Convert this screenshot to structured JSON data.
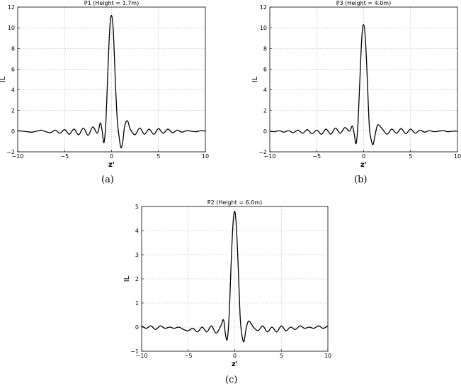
{
  "figure": {
    "captions": [
      "(a)",
      "(b)",
      "(c)"
    ]
  },
  "chart_data": [
    {
      "type": "line",
      "title": "P1 (Height = 1.7m)",
      "xlabel": "z'",
      "ylabel": "IL",
      "xlim": [
        -10,
        10
      ],
      "ylim": [
        -2,
        12
      ],
      "xticks": [
        -10,
        -5,
        0,
        5,
        10
      ],
      "yticks": [
        -2,
        0,
        2,
        4,
        6,
        8,
        10,
        12
      ],
      "grid": true,
      "series": [
        {
          "x": [
            -10,
            -9.5,
            -9,
            -8.5,
            -8,
            -7.5,
            -7,
            -6.5,
            -6,
            -5.5,
            -5,
            -4.5,
            -4,
            -3.5,
            -3,
            -2.5,
            -2,
            -1.5,
            -1.2,
            -1,
            -0.8,
            -0.6,
            -0.4,
            -0.2,
            0,
            0.2,
            0.4,
            0.6,
            0.8,
            1,
            1.2,
            1.4,
            1.7,
            2,
            2.5,
            3,
            3.5,
            4,
            4.5,
            5,
            5.5,
            6,
            6.5,
            7,
            7.5,
            8,
            8.5,
            9,
            9.5,
            10
          ],
          "y": [
            0.05,
            0.0,
            -0.05,
            -0.1,
            0.0,
            0.1,
            -0.05,
            -0.15,
            0.1,
            -0.2,
            0.15,
            -0.3,
            0.2,
            -0.35,
            0.3,
            -0.4,
            0.4,
            -0.2,
            0.8,
            0.0,
            -1.1,
            1.0,
            5.5,
            9.8,
            11.2,
            9.5,
            5.0,
            1.2,
            -0.5,
            -1.6,
            -1.0,
            0.5,
            1.0,
            0.2,
            -0.35,
            0.3,
            -0.3,
            0.2,
            -0.3,
            0.25,
            -0.2,
            0.2,
            -0.15,
            0.1,
            -0.1,
            0.05,
            0.0,
            -0.05,
            0.05,
            0.0
          ]
        }
      ]
    },
    {
      "type": "line",
      "title": "P3 (Height = 4.0m)",
      "xlabel": "z'",
      "ylabel": "IL",
      "xlim": [
        -10,
        10
      ],
      "ylim": [
        -2,
        12
      ],
      "xticks": [
        -10,
        -5,
        0,
        5,
        10
      ],
      "yticks": [
        -2,
        0,
        2,
        4,
        6,
        8,
        10,
        12
      ],
      "grid": true,
      "series": [
        {
          "x": [
            -10,
            -9.5,
            -9,
            -8.5,
            -8,
            -7.5,
            -7,
            -6.5,
            -6,
            -5.5,
            -5,
            -4.5,
            -4,
            -3.5,
            -3,
            -2.5,
            -2,
            -1.5,
            -1.2,
            -1,
            -0.8,
            -0.6,
            -0.4,
            -0.2,
            0,
            0.2,
            0.4,
            0.6,
            0.8,
            1,
            1.2,
            1.5,
            2,
            2.5,
            3,
            3.5,
            4,
            4.5,
            5,
            5.5,
            6,
            6.5,
            7,
            7.5,
            8,
            8.5,
            9,
            9.5,
            10
          ],
          "y": [
            0.0,
            -0.05,
            0.05,
            -0.1,
            0.05,
            -0.15,
            0.1,
            -0.2,
            0.15,
            -0.25,
            0.1,
            -0.3,
            0.2,
            -0.3,
            0.3,
            -0.2,
            0.35,
            0.0,
            0.5,
            -0.3,
            -1.2,
            0.8,
            5.0,
            9.0,
            10.3,
            8.8,
            4.8,
            0.5,
            -0.8,
            -1.3,
            -0.5,
            0.6,
            0.2,
            -0.3,
            0.2,
            -0.2,
            0.25,
            -0.25,
            0.2,
            -0.2,
            0.1,
            -0.1,
            0.05,
            -0.05,
            0.0,
            0.05,
            -0.05,
            0.0,
            0.0
          ]
        }
      ]
    },
    {
      "type": "line",
      "title": "P2 (Height = 6.0m)",
      "xlabel": "z'",
      "ylabel": "IL",
      "xlim": [
        -10,
        10
      ],
      "ylim": [
        -1,
        5
      ],
      "xticks": [
        -10,
        -5,
        0,
        5,
        10
      ],
      "yticks": [
        -1,
        0,
        1,
        2,
        3,
        4,
        5
      ],
      "grid": true,
      "series": [
        {
          "x": [
            -10,
            -9.5,
            -9,
            -8.5,
            -8,
            -7.5,
            -7,
            -6.5,
            -6,
            -5.5,
            -5,
            -4.5,
            -4,
            -3.5,
            -3,
            -2.5,
            -2,
            -1.5,
            -1.2,
            -1,
            -0.8,
            -0.6,
            -0.4,
            -0.2,
            0,
            0.2,
            0.4,
            0.6,
            0.8,
            1,
            1.2,
            1.5,
            2,
            2.5,
            3,
            3.5,
            4,
            4.5,
            5,
            5.5,
            6,
            6.5,
            7,
            7.5,
            8,
            8.5,
            9,
            9.5,
            10
          ],
          "y": [
            0.05,
            -0.05,
            0.05,
            -0.1,
            0.05,
            -0.05,
            0.0,
            -0.05,
            0.0,
            -0.1,
            -0.15,
            -0.05,
            -0.2,
            0.0,
            -0.2,
            0.05,
            -0.25,
            0.05,
            0.3,
            -0.3,
            -0.5,
            0.5,
            2.5,
            4.2,
            4.8,
            4.0,
            2.2,
            0.3,
            -0.4,
            -0.6,
            -0.1,
            0.25,
            0.0,
            -0.15,
            0.05,
            -0.2,
            0.0,
            -0.2,
            0.05,
            -0.15,
            0.0,
            -0.1,
            0.05,
            -0.05,
            0.0,
            -0.05,
            0.05,
            -0.05,
            0.05
          ]
        }
      ]
    }
  ]
}
